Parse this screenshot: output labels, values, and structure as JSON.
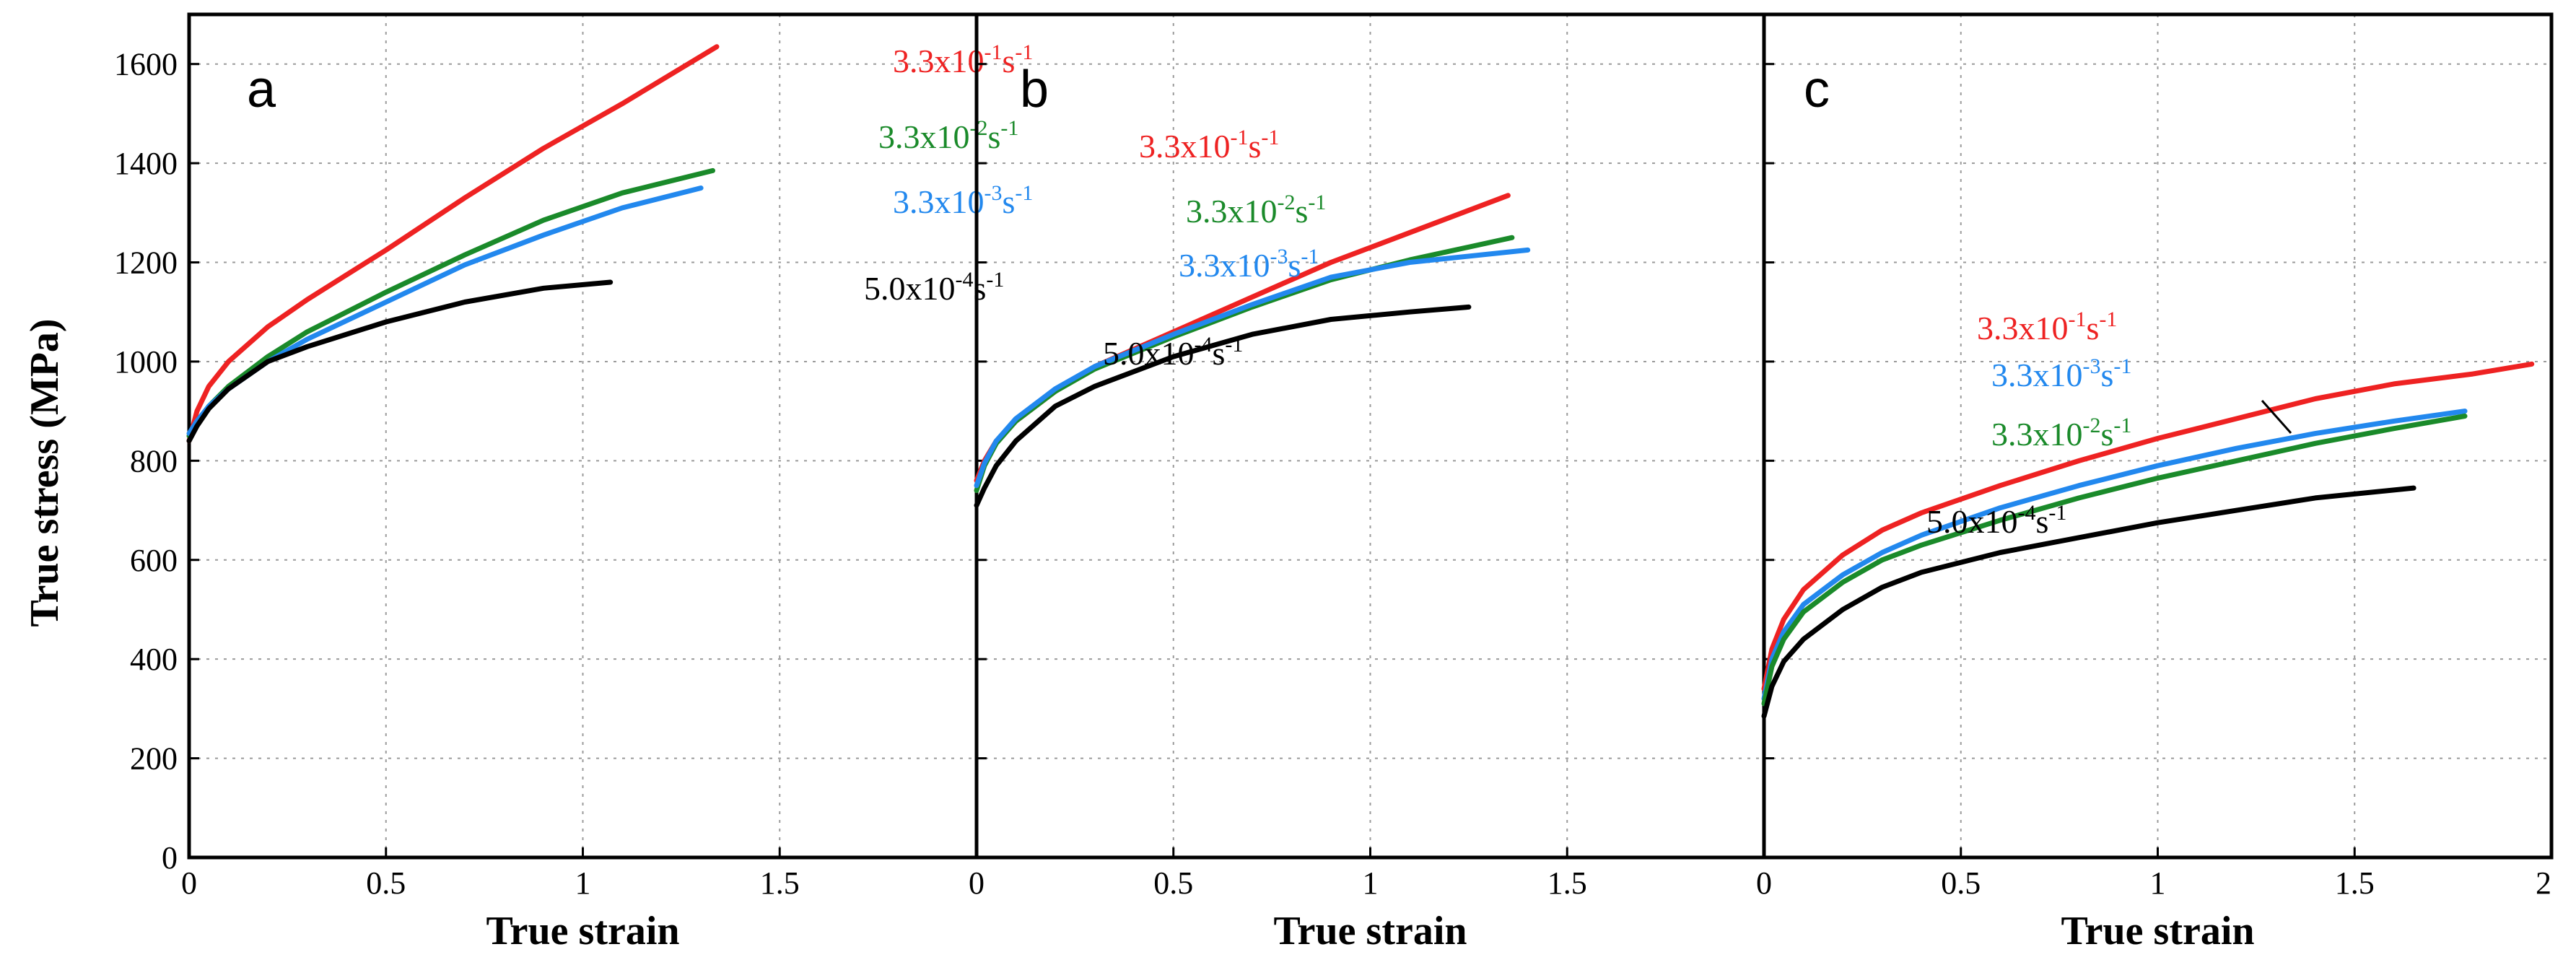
{
  "chart_data": {
    "type": "line",
    "ylabel": "True stress (MPa)",
    "xlabel": "True strain",
    "ylim": [
      0,
      1700
    ],
    "yticks": [
      0,
      200,
      400,
      600,
      800,
      1000,
      1200,
      1400,
      1600
    ],
    "grid": true,
    "panels": [
      {
        "letter": "a",
        "xlim": [
          0,
          2.0
        ],
        "xticks": [
          "0",
          "0.5",
          "1",
          "1.5"
        ],
        "series": [
          {
            "rate_base": "3.3x10",
            "rate_exp": "-1",
            "unit": "s",
            "unit_exp": "-1",
            "color": "#ee2222",
            "points": [
              [
                0,
                840
              ],
              [
                0.02,
                900
              ],
              [
                0.05,
                950
              ],
              [
                0.1,
                1000
              ],
              [
                0.2,
                1070
              ],
              [
                0.3,
                1125
              ],
              [
                0.5,
                1225
              ],
              [
                0.7,
                1330
              ],
              [
                0.9,
                1430
              ],
              [
                1.1,
                1520
              ],
              [
                1.34,
                1635
              ]
            ]
          },
          {
            "rate_base": "3.3x10",
            "rate_exp": "-2",
            "unit": "s",
            "unit_exp": "-1",
            "color": "#1a8a2a",
            "points": [
              [
                0,
                850
              ],
              [
                0.02,
                875
              ],
              [
                0.05,
                910
              ],
              [
                0.1,
                950
              ],
              [
                0.2,
                1010
              ],
              [
                0.3,
                1060
              ],
              [
                0.5,
                1140
              ],
              [
                0.7,
                1215
              ],
              [
                0.9,
                1285
              ],
              [
                1.1,
                1340
              ],
              [
                1.33,
                1385
              ]
            ]
          },
          {
            "rate_base": "3.3x10",
            "rate_exp": "-3",
            "unit": "s",
            "unit_exp": "-1",
            "color": "#2288ee",
            "points": [
              [
                0,
                855
              ],
              [
                0.02,
                880
              ],
              [
                0.05,
                910
              ],
              [
                0.1,
                945
              ],
              [
                0.2,
                1000
              ],
              [
                0.3,
                1045
              ],
              [
                0.5,
                1120
              ],
              [
                0.7,
                1195
              ],
              [
                0.9,
                1255
              ],
              [
                1.1,
                1310
              ],
              [
                1.3,
                1350
              ]
            ]
          },
          {
            "rate_base": "5.0x10",
            "rate_exp": "-4",
            "unit": "s",
            "unit_exp": "-1",
            "color": "#000000",
            "points": [
              [
                0,
                840
              ],
              [
                0.02,
                870
              ],
              [
                0.05,
                905
              ],
              [
                0.1,
                945
              ],
              [
                0.2,
                1000
              ],
              [
                0.3,
                1030
              ],
              [
                0.5,
                1080
              ],
              [
                0.7,
                1120
              ],
              [
                0.9,
                1148
              ],
              [
                1.07,
                1160
              ]
            ]
          }
        ]
      },
      {
        "letter": "b",
        "xlim": [
          0,
          2.0
        ],
        "xticks": [
          "0",
          "0.5",
          "1",
          "1.5"
        ],
        "series": [
          {
            "rate_base": "3.3x10",
            "rate_exp": "-1",
            "unit": "s",
            "unit_exp": "-1",
            "color": "#ee2222",
            "points": [
              [
                0,
                760
              ],
              [
                0.02,
                800
              ],
              [
                0.05,
                840
              ],
              [
                0.1,
                880
              ],
              [
                0.2,
                940
              ],
              [
                0.3,
                990
              ],
              [
                0.5,
                1060
              ],
              [
                0.7,
                1130
              ],
              [
                0.9,
                1200
              ],
              [
                1.1,
                1260
              ],
              [
                1.35,
                1335
              ]
            ]
          },
          {
            "rate_base": "3.3x10",
            "rate_exp": "-2",
            "unit": "s",
            "unit_exp": "-1",
            "color": "#1a8a2a",
            "points": [
              [
                0,
                740
              ],
              [
                0.02,
                790
              ],
              [
                0.05,
                835
              ],
              [
                0.1,
                880
              ],
              [
                0.2,
                940
              ],
              [
                0.3,
                985
              ],
              [
                0.5,
                1050
              ],
              [
                0.7,
                1110
              ],
              [
                0.9,
                1165
              ],
              [
                1.1,
                1205
              ],
              [
                1.36,
                1250
              ]
            ]
          },
          {
            "rate_base": "3.3x10",
            "rate_exp": "-3",
            "unit": "s",
            "unit_exp": "-1",
            "color": "#2288ee",
            "points": [
              [
                0,
                750
              ],
              [
                0.02,
                795
              ],
              [
                0.05,
                840
              ],
              [
                0.1,
                885
              ],
              [
                0.2,
                945
              ],
              [
                0.3,
                990
              ],
              [
                0.5,
                1055
              ],
              [
                0.7,
                1115
              ],
              [
                0.9,
                1170
              ],
              [
                1.1,
                1200
              ],
              [
                1.4,
                1225
              ]
            ]
          },
          {
            "rate_base": "5.0x10",
            "rate_exp": "-4",
            "unit": "s",
            "unit_exp": "-1",
            "color": "#000000",
            "points": [
              [
                0,
                710
              ],
              [
                0.02,
                745
              ],
              [
                0.05,
                790
              ],
              [
                0.1,
                840
              ],
              [
                0.2,
                910
              ],
              [
                0.3,
                950
              ],
              [
                0.5,
                1010
              ],
              [
                0.7,
                1055
              ],
              [
                0.9,
                1085
              ],
              [
                1.1,
                1100
              ],
              [
                1.25,
                1110
              ]
            ]
          }
        ]
      },
      {
        "letter": "c",
        "xlim": [
          0,
          2.0
        ],
        "xticks": [
          "0",
          "0.5",
          "1",
          "1.5",
          "2"
        ],
        "series": [
          {
            "rate_base": "3.3x10",
            "rate_exp": "-1",
            "unit": "s",
            "unit_exp": "-1",
            "color": "#ee2222",
            "points": [
              [
                0,
                340
              ],
              [
                0.02,
                420
              ],
              [
                0.05,
                480
              ],
              [
                0.1,
                540
              ],
              [
                0.2,
                610
              ],
              [
                0.3,
                660
              ],
              [
                0.4,
                695
              ],
              [
                0.6,
                750
              ],
              [
                0.8,
                800
              ],
              [
                1.0,
                845
              ],
              [
                1.2,
                885
              ],
              [
                1.4,
                925
              ],
              [
                1.6,
                955
              ],
              [
                1.8,
                975
              ],
              [
                1.95,
                995
              ]
            ]
          },
          {
            "rate_base": "3.3x10",
            "rate_exp": "-3",
            "unit": "s",
            "unit_exp": "-1",
            "color": "#2288ee",
            "points": [
              [
                0,
                320
              ],
              [
                0.02,
                400
              ],
              [
                0.05,
                455
              ],
              [
                0.1,
                510
              ],
              [
                0.2,
                570
              ],
              [
                0.3,
                615
              ],
              [
                0.4,
                650
              ],
              [
                0.6,
                705
              ],
              [
                0.8,
                750
              ],
              [
                1.0,
                790
              ],
              [
                1.2,
                825
              ],
              [
                1.4,
                855
              ],
              [
                1.6,
                880
              ],
              [
                1.78,
                900
              ]
            ]
          },
          {
            "rate_base": "3.3x10",
            "rate_exp": "-2",
            "unit": "s",
            "unit_exp": "-1",
            "color": "#1a8a2a",
            "points": [
              [
                0,
                310
              ],
              [
                0.02,
                385
              ],
              [
                0.05,
                440
              ],
              [
                0.1,
                495
              ],
              [
                0.2,
                555
              ],
              [
                0.3,
                600
              ],
              [
                0.4,
                630
              ],
              [
                0.6,
                680
              ],
              [
                0.8,
                725
              ],
              [
                1.0,
                765
              ],
              [
                1.2,
                800
              ],
              [
                1.4,
                835
              ],
              [
                1.6,
                865
              ],
              [
                1.78,
                890
              ]
            ]
          },
          {
            "rate_base": "5.0x10",
            "rate_exp": "-4",
            "unit": "s",
            "unit_exp": "-1",
            "color": "#000000",
            "points": [
              [
                0,
                285
              ],
              [
                0.02,
                345
              ],
              [
                0.05,
                395
              ],
              [
                0.1,
                440
              ],
              [
                0.2,
                500
              ],
              [
                0.3,
                545
              ],
              [
                0.4,
                575
              ],
              [
                0.6,
                615
              ],
              [
                0.8,
                645
              ],
              [
                1.0,
                675
              ],
              [
                1.2,
                700
              ],
              [
                1.4,
                725
              ],
              [
                1.65,
                745
              ]
            ]
          }
        ]
      }
    ]
  }
}
